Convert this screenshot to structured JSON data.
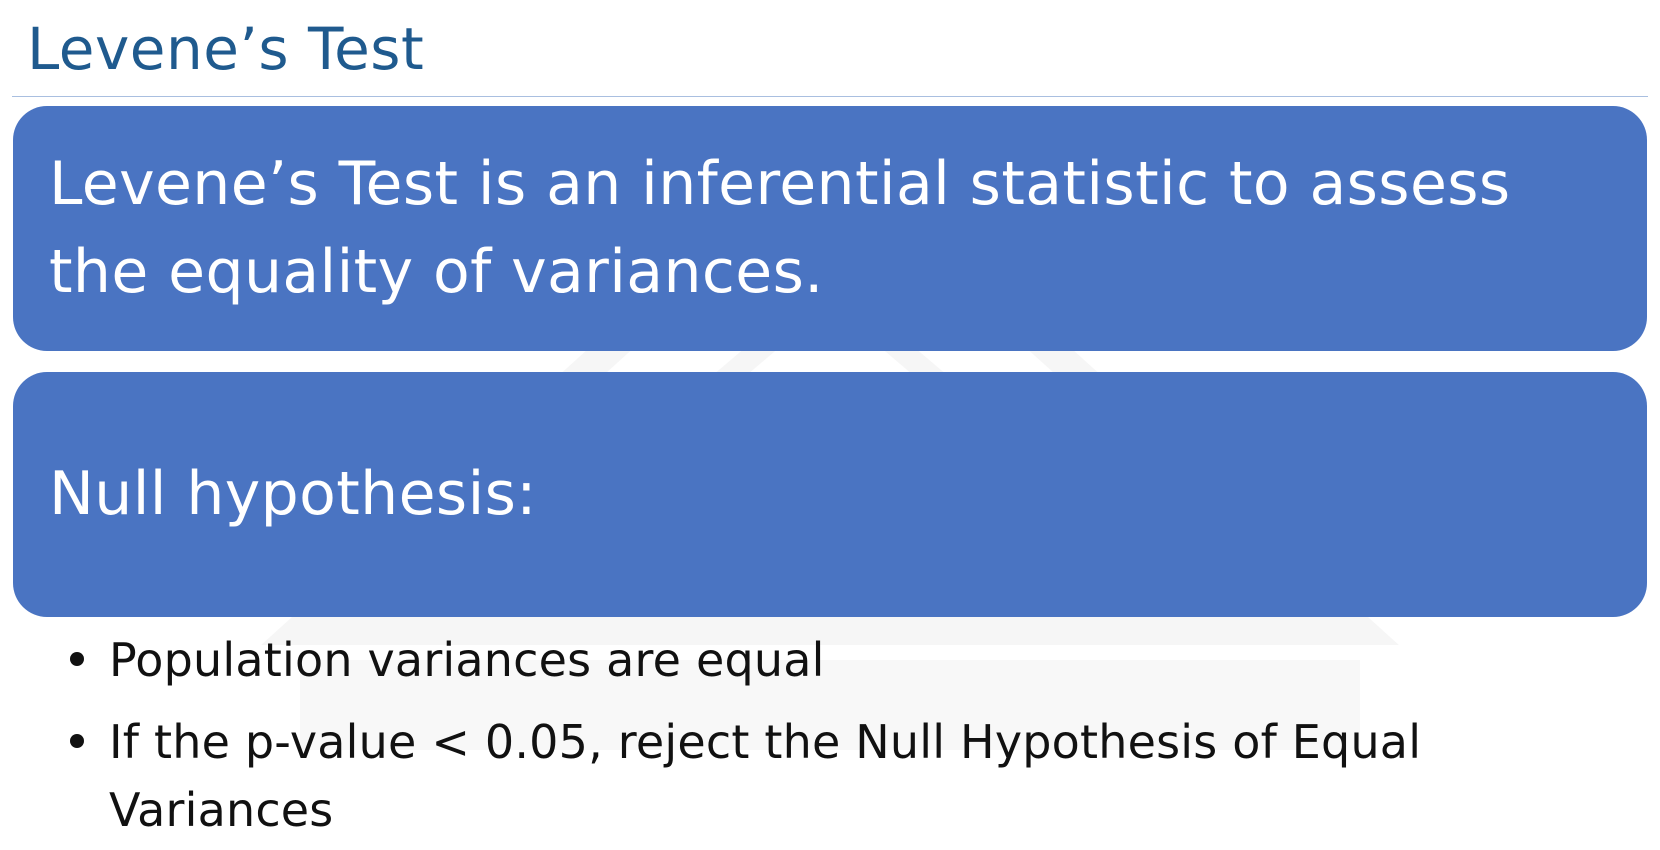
{
  "slide": {
    "title": "Levene’s Test",
    "definition": "Levene’s Test is an inferential statistic to assess the equality of variances.",
    "null_heading": "Null hypothesis:",
    "bullets": [
      "Population variances are equal",
      "If the p-value < 0.05, reject the Null Hypothesis of Equal Variances"
    ]
  },
  "colors": {
    "title": "#1f5a8e",
    "box_fill": "#4a74c2",
    "box_text": "#ffffff",
    "bullet_text": "#111111",
    "rule": "#a9bfe0"
  }
}
